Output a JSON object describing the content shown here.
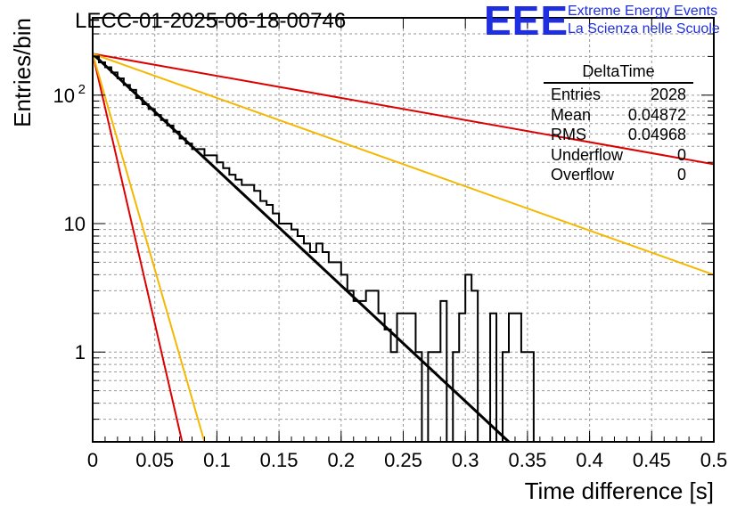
{
  "header": {
    "title": "LECC-01-2025-06-18-00746",
    "logo_text": "EEE",
    "org_line1": "Extreme Energy Events",
    "org_line2": "La Scienza nelle Scuole"
  },
  "stats": {
    "title": "DeltaTime",
    "rows": [
      {
        "label": "Entries",
        "value": "2028"
      },
      {
        "label": "Mean",
        "value": "0.04872"
      },
      {
        "label": "RMS",
        "value": "0.04968"
      },
      {
        "label": "Underflow",
        "value": "0"
      },
      {
        "label": "Overflow",
        "value": "0"
      }
    ]
  },
  "chart_data": {
    "type": "histogram",
    "xlabel": "Time difference [s]",
    "ylabel": "Entries/bin",
    "xlim": [
      0,
      0.5
    ],
    "ylim": [
      0.2,
      400
    ],
    "log_y": true,
    "grid": true,
    "x_ticks": [
      0,
      0.05,
      0.1,
      0.15,
      0.2,
      0.25,
      0.3,
      0.35,
      0.4,
      0.45,
      0.5
    ],
    "x_tick_labels": [
      "0",
      "0.05",
      "0.1",
      "0.15",
      "0.2",
      "0.25",
      "0.3",
      "0.35",
      "0.4",
      "0.45",
      "0.5"
    ],
    "y_tick_labels": [
      {
        "value": 1,
        "label": "1"
      },
      {
        "value": 10,
        "label": "10"
      },
      {
        "value": 100,
        "label": "10",
        "sup": "2"
      }
    ],
    "bin_width": 0.005,
    "histogram_values": [
      200,
      180,
      165,
      150,
      135,
      120,
      110,
      95,
      85,
      78,
      70,
      64,
      58,
      52,
      46,
      42,
      38,
      38,
      34,
      34,
      30,
      27,
      24,
      22,
      20,
      20,
      18,
      15,
      14,
      12,
      10,
      10,
      9,
      8,
      7,
      6,
      7,
      6,
      5,
      5,
      4,
      3,
      2.5,
      2.5,
      3,
      3,
      2,
      1.5,
      1,
      2,
      2,
      2,
      1,
      0.2,
      1,
      1,
      2.5,
      0.2,
      1,
      2,
      4,
      3,
      0.2,
      0.2,
      2,
      0.2,
      1,
      2,
      2,
      1,
      1,
      0.2,
      0.2,
      0.2,
      0.2,
      0.2,
      0.2,
      0.2,
      0.2,
      0.2,
      0.2,
      0.2,
      0.2,
      0.2,
      0.2,
      0.2,
      0.2,
      0.2,
      0.2,
      0.2,
      0.2,
      0.2,
      0.2,
      0.2,
      0.2,
      0.2,
      0.2,
      0.2,
      0.2,
      0.2
    ],
    "series": [
      {
        "kind": "fit",
        "color": "#000000",
        "points": [
          [
            0,
            210
          ],
          [
            0.335,
            0.2
          ]
        ]
      },
      {
        "kind": "reference",
        "color": "#dd0000",
        "points": [
          [
            0,
            210
          ],
          [
            0.072,
            0.2
          ]
        ]
      },
      {
        "kind": "reference",
        "color": "#f5b800",
        "points": [
          [
            0,
            210
          ],
          [
            0.09,
            0.2
          ]
        ]
      },
      {
        "kind": "reference",
        "color": "#dd0000",
        "points": [
          [
            0,
            210
          ],
          [
            0.5,
            29
          ]
        ]
      },
      {
        "kind": "reference",
        "color": "#f5b800",
        "points": [
          [
            0,
            210
          ],
          [
            0.5,
            4
          ]
        ]
      }
    ]
  }
}
